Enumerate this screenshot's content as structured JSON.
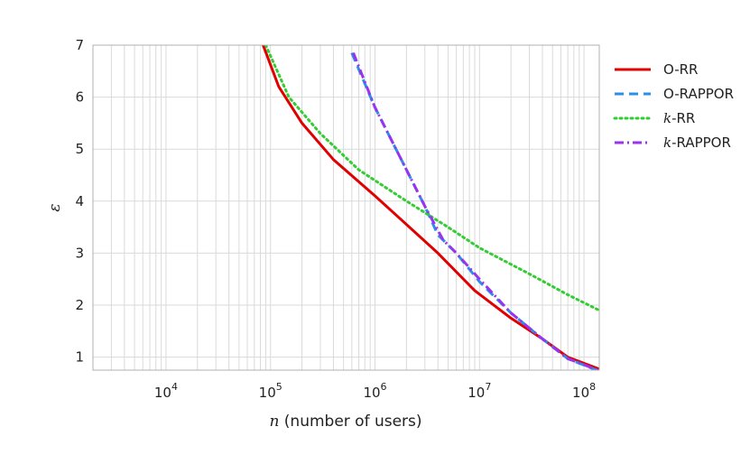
{
  "chart_data": {
    "type": "line",
    "xscale": "log",
    "xlabel_var": "n",
    "xlabel_rest": " (number of users)",
    "ylabel": "ε",
    "xlim": [
      2000,
      140000000
    ],
    "ylim": [
      0.75,
      7
    ],
    "yticks": [
      1,
      2,
      3,
      4,
      5,
      6,
      7
    ],
    "xticks": [
      {
        "value": 10000,
        "base": "10",
        "exp": "4"
      },
      {
        "value": 100000,
        "base": "10",
        "exp": "5"
      },
      {
        "value": 1000000,
        "base": "10",
        "exp": "6"
      },
      {
        "value": 10000000,
        "base": "10",
        "exp": "7"
      },
      {
        "value": 100000000,
        "base": "10",
        "exp": "8"
      }
    ],
    "grid": true,
    "legend_position": "outside-right",
    "series": [
      {
        "name_prefix": "",
        "name": "O-RR",
        "color": "#e00000",
        "style": "solid",
        "points": [
          [
            85000,
            7.0
          ],
          [
            120000,
            6.2
          ],
          [
            200000,
            5.5
          ],
          [
            400000,
            4.8
          ],
          [
            1000000,
            4.1
          ],
          [
            2000000,
            3.55
          ],
          [
            4000000,
            3.0
          ],
          [
            9000000,
            2.28
          ],
          [
            20000000,
            1.75
          ],
          [
            40000000,
            1.35
          ],
          [
            70000000,
            1.0
          ],
          [
            140000000,
            0.77
          ]
        ]
      },
      {
        "name_prefix": "",
        "name": "O-RAPPOR",
        "color": "#2b8ee8",
        "style": "dashed",
        "points": [
          [
            600000,
            6.85
          ],
          [
            1000000,
            5.8
          ],
          [
            2000000,
            4.6
          ],
          [
            3000000,
            3.9
          ],
          [
            4000000,
            3.35
          ],
          [
            6000000,
            3.0
          ],
          [
            10000000,
            2.45
          ],
          [
            20000000,
            1.85
          ],
          [
            40000000,
            1.35
          ],
          [
            70000000,
            0.97
          ],
          [
            140000000,
            0.73
          ]
        ]
      },
      {
        "name_prefix": "k",
        "name": "-RR",
        "color": "#33cc33",
        "style": "dotted",
        "points": [
          [
            90000,
            7.0
          ],
          [
            150000,
            6.0
          ],
          [
            300000,
            5.3
          ],
          [
            700000,
            4.6
          ],
          [
            2000000,
            4.0
          ],
          [
            5000000,
            3.5
          ],
          [
            10000000,
            3.1
          ],
          [
            30000000,
            2.6
          ],
          [
            70000000,
            2.2
          ],
          [
            140000000,
            1.9
          ]
        ]
      },
      {
        "name_prefix": "k",
        "name": "-RAPPOR",
        "color": "#9933ee",
        "style": "dashdot",
        "points": [
          [
            620000,
            6.85
          ],
          [
            1000000,
            5.8
          ],
          [
            2000000,
            4.6
          ],
          [
            3000000,
            3.9
          ],
          [
            4500000,
            3.25
          ],
          [
            6000000,
            3.0
          ],
          [
            10000000,
            2.5
          ],
          [
            20000000,
            1.85
          ],
          [
            40000000,
            1.35
          ],
          [
            70000000,
            0.97
          ],
          [
            140000000,
            0.74
          ]
        ]
      }
    ]
  }
}
